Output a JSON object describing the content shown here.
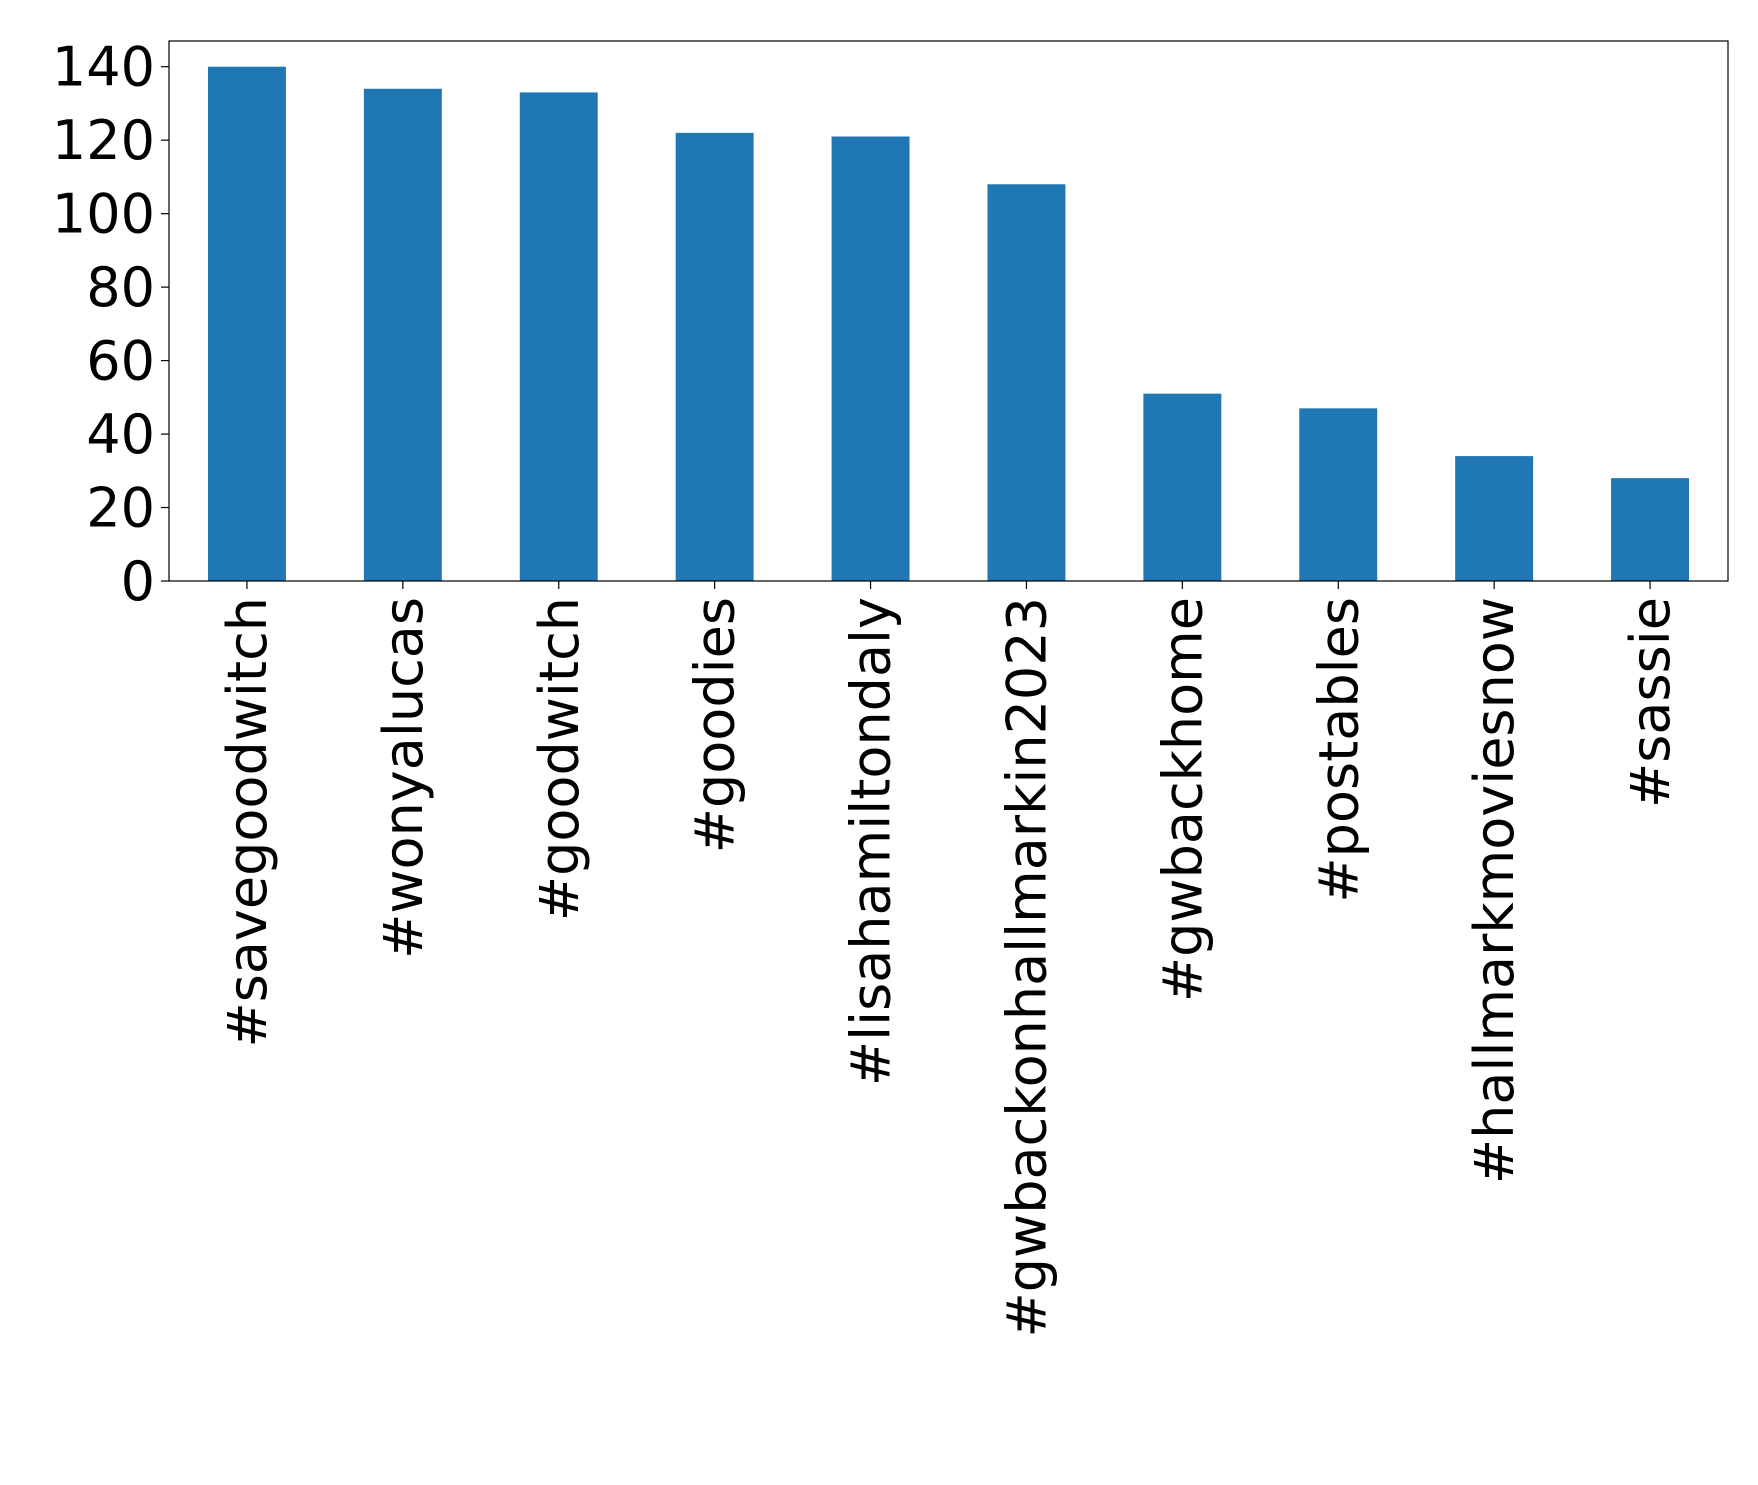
{
  "chart_data": {
    "type": "bar",
    "categories": [
      "#savegoodwitch",
      "#wonyalucas",
      "#goodwitch",
      "#goodies",
      "#lisahamiltondaly",
      "#gwbackonhallmarkin2023",
      "#gwbackhome",
      "#postables",
      "#hallmarkmoviesnow",
      "#sassie"
    ],
    "values": [
      140,
      134,
      133,
      122,
      121,
      108,
      51,
      47,
      34,
      28
    ],
    "color": "#1f77b4",
    "ylim": [
      0,
      147
    ],
    "yticks": [
      0,
      20,
      40,
      60,
      80,
      100,
      120,
      140
    ],
    "grid": false
  }
}
